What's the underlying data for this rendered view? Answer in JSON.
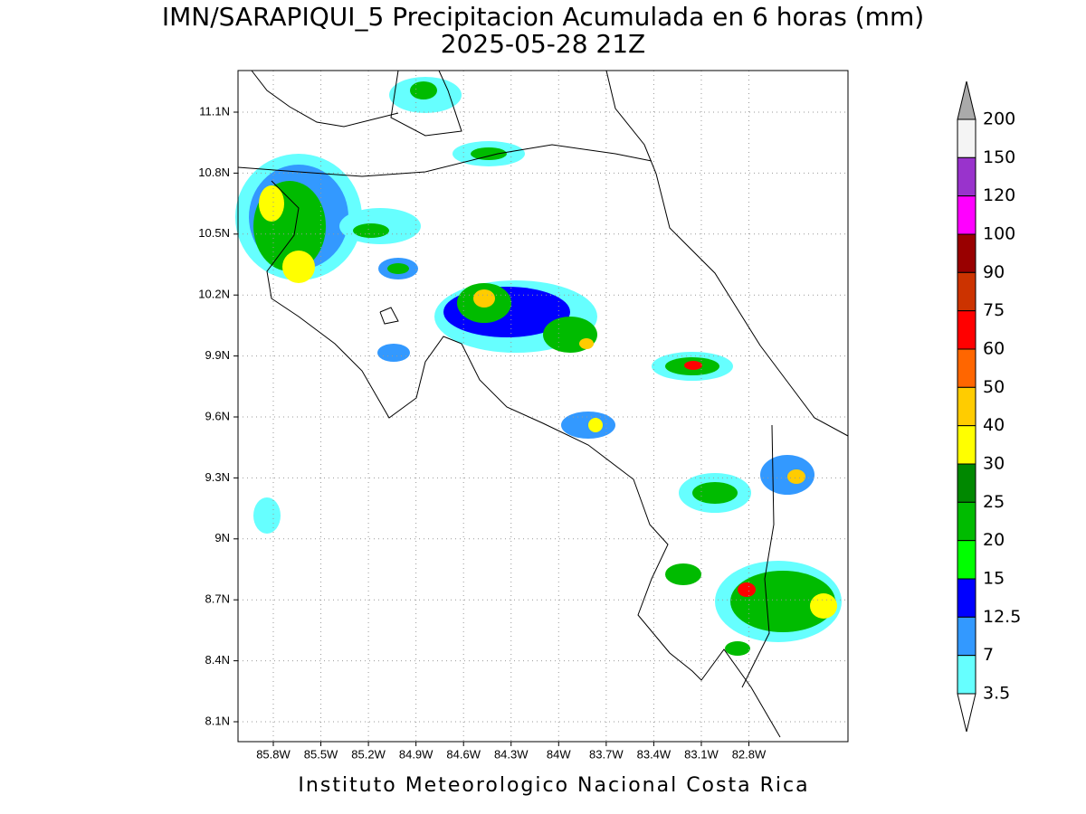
{
  "title": "IMN/SARAPIQUI_5 Precipitacion Acumulada en 6 horas (mm)",
  "subtitle": "2025-05-28 21Z",
  "x_ticks": [
    "85.8W",
    "85.5W",
    "85.2W",
    "84.9W",
    "84.6W",
    "84.3W",
    "84W",
    "83.7W",
    "83.4W",
    "83.1W",
    "82.8W"
  ],
  "y_ticks": [
    "11.1N",
    "10.8N",
    "10.5N",
    "10.2N",
    "9.9N",
    "9.6N",
    "9.3N",
    "9N",
    "8.7N",
    "8.4N",
    "8.1N"
  ],
  "colorbar": {
    "labels": [
      "200",
      "150",
      "120",
      "100",
      "90",
      "75",
      "60",
      "50",
      "40",
      "30",
      "25",
      "20",
      "15",
      "12.5",
      "7",
      "3.5"
    ],
    "colors": [
      "#f4f4f4",
      "#9933cc",
      "#ff00ff",
      "#990000",
      "#cc3300",
      "#ff0000",
      "#ff6600",
      "#ffcc00",
      "#ffff00",
      "#008800",
      "#00bb00",
      "#00ff00",
      "#0000ff",
      "#3399ff",
      "#66ffff"
    ],
    "over_color": "#aaaaaa",
    "under_color": "#ffffff"
  },
  "footer": "Instituto Meteorologico Nacional Costa Rica"
}
